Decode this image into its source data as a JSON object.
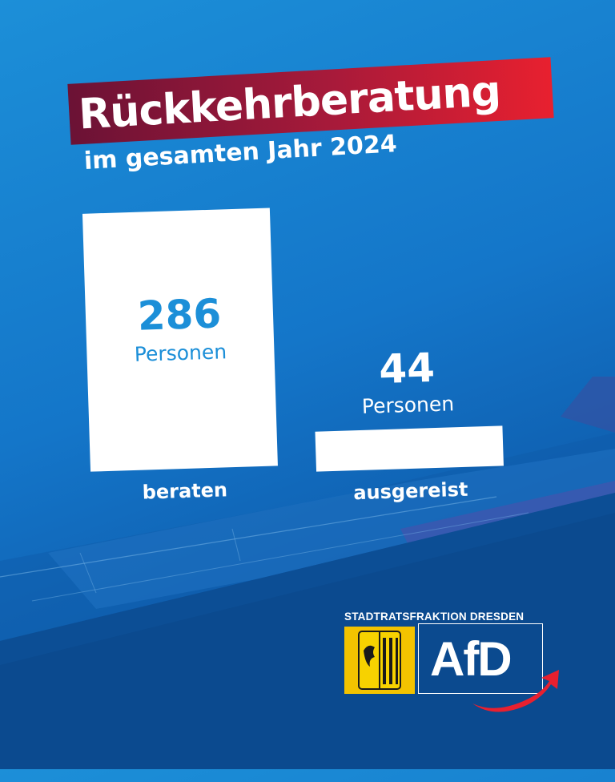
{
  "colors": {
    "bg_top": "#1c8fd8",
    "bg_bottom": "#0b4d96",
    "banner_left": "#6b1235",
    "banner_right": "#e8202f",
    "bar": "#ffffff",
    "value_in_bar": "#1c8fd8",
    "value_above_bar": "#ffffff",
    "crest_yellow": "#f3c300",
    "afd_arrow_red": "#e8202f"
  },
  "header": {
    "title": "Rückkehrberatung",
    "subtitle": "im gesamten Jahr 2024"
  },
  "chart_data": {
    "type": "bar",
    "title": "Rückkehrberatung",
    "subtitle": "im gesamten Jahr 2024",
    "categories": [
      "beraten",
      "ausgereist"
    ],
    "values": [
      286,
      44
    ],
    "unit": "Personen",
    "value_labels": [
      "286",
      "44"
    ],
    "unit_labels": [
      "Personen",
      "Personen"
    ],
    "xlabel": "",
    "ylabel": "",
    "ylim": [
      0,
      286
    ],
    "grid": false,
    "legend": "none"
  },
  "logo": {
    "caption": "STADTRATSFRAKTION DRESDEN",
    "party": "AfD",
    "crest_icon": "dresden-coat-of-arms-icon",
    "arrow_icon": "afd-swoosh-arrow-icon"
  }
}
